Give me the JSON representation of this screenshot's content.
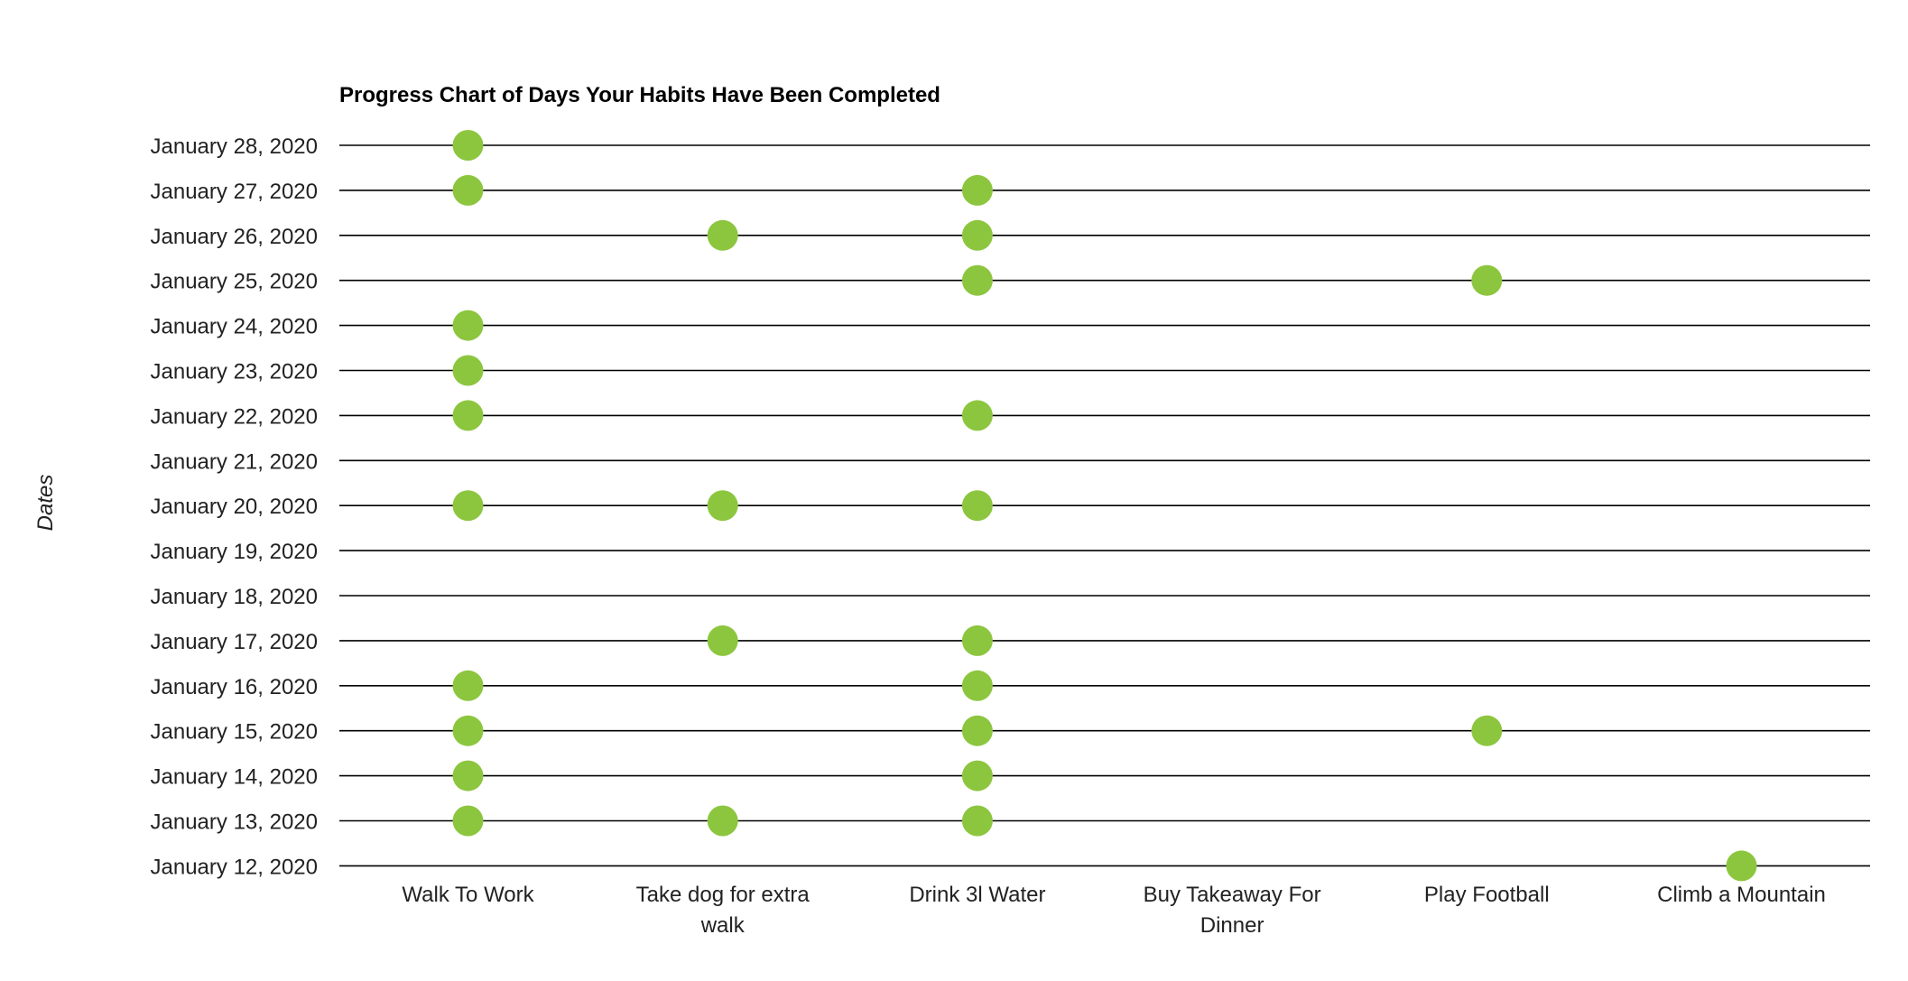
{
  "chart_data": {
    "type": "scatter",
    "title": "Progress Chart of Days Your Habits Have Been Completed",
    "ylabel": "Dates",
    "xlabel": "",
    "categories": [
      "Walk To Work",
      "Take dog for extra walk",
      "Drink 3l Water",
      "Buy Takeaway For Dinner",
      "Play Football",
      "Climb a Mountain"
    ],
    "category_lines": [
      [
        "Walk To Work"
      ],
      [
        "Take dog for extra",
        "walk"
      ],
      [
        "Drink 3l Water"
      ],
      [
        "Buy Takeaway For",
        "Dinner"
      ],
      [
        "Play Football"
      ],
      [
        "Climb a Mountain"
      ]
    ],
    "dates": [
      "January 28, 2020",
      "January 27, 2020",
      "January 26, 2020",
      "January 25, 2020",
      "January 24, 2020",
      "January 23, 2020",
      "January 22, 2020",
      "January 21, 2020",
      "January 20, 2020",
      "January 19, 2020",
      "January 18, 2020",
      "January 17, 2020",
      "January 16, 2020",
      "January 15, 2020",
      "January 14, 2020",
      "January 13, 2020",
      "January 12, 2020"
    ],
    "points": [
      {
        "habit": "Walk To Work",
        "date": "January 28, 2020"
      },
      {
        "habit": "Walk To Work",
        "date": "January 27, 2020"
      },
      {
        "habit": "Drink 3l Water",
        "date": "January 27, 2020"
      },
      {
        "habit": "Take dog for extra walk",
        "date": "January 26, 2020"
      },
      {
        "habit": "Drink 3l Water",
        "date": "January 26, 2020"
      },
      {
        "habit": "Drink 3l Water",
        "date": "January 25, 2020"
      },
      {
        "habit": "Play Football",
        "date": "January 25, 2020"
      },
      {
        "habit": "Walk To Work",
        "date": "January 24, 2020"
      },
      {
        "habit": "Walk To Work",
        "date": "January 23, 2020"
      },
      {
        "habit": "Walk To Work",
        "date": "January 22, 2020"
      },
      {
        "habit": "Drink 3l Water",
        "date": "January 22, 2020"
      },
      {
        "habit": "Walk To Work",
        "date": "January 20, 2020"
      },
      {
        "habit": "Take dog for extra walk",
        "date": "January 20, 2020"
      },
      {
        "habit": "Drink 3l Water",
        "date": "January 20, 2020"
      },
      {
        "habit": "Take dog for extra walk",
        "date": "January 17, 2020"
      },
      {
        "habit": "Drink 3l Water",
        "date": "January 17, 2020"
      },
      {
        "habit": "Walk To Work",
        "date": "January 16, 2020"
      },
      {
        "habit": "Drink 3l Water",
        "date": "January 16, 2020"
      },
      {
        "habit": "Walk To Work",
        "date": "January 15, 2020"
      },
      {
        "habit": "Drink 3l Water",
        "date": "January 15, 2020"
      },
      {
        "habit": "Play Football",
        "date": "January 15, 2020"
      },
      {
        "habit": "Walk To Work",
        "date": "January 14, 2020"
      },
      {
        "habit": "Drink 3l Water",
        "date": "January 14, 2020"
      },
      {
        "habit": "Walk To Work",
        "date": "January 13, 2020"
      },
      {
        "habit": "Take dog for extra walk",
        "date": "January 13, 2020"
      },
      {
        "habit": "Drink 3l Water",
        "date": "January 13, 2020"
      },
      {
        "habit": "Climb a Mountain",
        "date": "January 12, 2020"
      }
    ],
    "grid": true,
    "legend": "none",
    "colors": {
      "point": "#8cc63f",
      "gridline": "#000000",
      "text": "#222222",
      "title": "#000000"
    }
  }
}
